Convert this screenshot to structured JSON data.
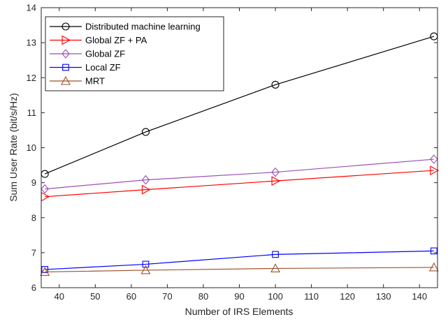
{
  "chart_data": {
    "type": "line",
    "xlabel": "Number of IRS Elements",
    "ylabel": "Sum User Rate (bit/s/Hz)",
    "xlim": [
      35,
      145
    ],
    "ylim": [
      6,
      14
    ],
    "xticks": [
      40,
      50,
      60,
      70,
      80,
      90,
      100,
      110,
      120,
      130,
      140
    ],
    "yticks": [
      6,
      7,
      8,
      9,
      10,
      11,
      12,
      13,
      14
    ],
    "grid": false,
    "legend_position": "top-left",
    "x": [
      36,
      64,
      100,
      144
    ],
    "series": [
      {
        "name": "Distributed machine learning",
        "values": [
          9.25,
          10.45,
          11.8,
          13.18
        ],
        "color": "#000000",
        "marker": "circle"
      },
      {
        "name": "Global ZF + PA",
        "values": [
          8.6,
          8.8,
          9.05,
          9.35
        ],
        "color": "#ff0000",
        "marker": "triangle-right"
      },
      {
        "name": "Global ZF",
        "values": [
          8.82,
          9.08,
          9.3,
          9.67
        ],
        "color": "#9e4fb8",
        "marker": "diamond"
      },
      {
        "name": "Local ZF",
        "values": [
          6.52,
          6.67,
          6.95,
          7.05
        ],
        "color": "#0000ff",
        "marker": "square"
      },
      {
        "name": "MRT",
        "values": [
          6.45,
          6.5,
          6.55,
          6.58
        ],
        "color": "#a0522d",
        "marker": "triangle-up"
      }
    ]
  }
}
